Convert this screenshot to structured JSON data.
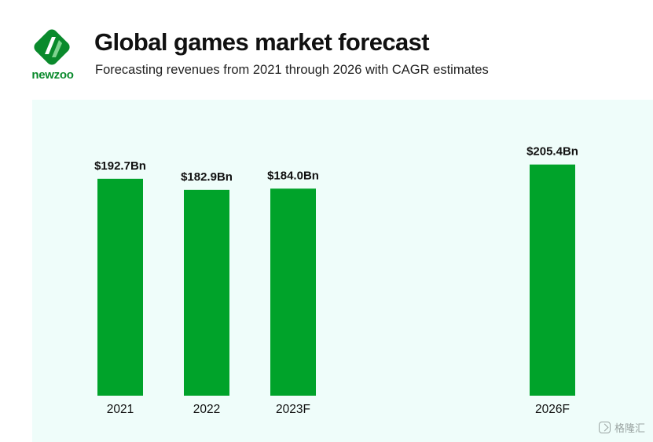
{
  "brand": {
    "name": "newzoo",
    "icon": "newzoo-logo-icon",
    "color": "#0a8a2c"
  },
  "header": {
    "title": "Global games market forecast",
    "subtitle": "Forecasting revenues from 2021 through 2026 with CAGR estimates"
  },
  "colors": {
    "bar": "#00a32a",
    "panel": "#effdfa",
    "text": "#111111"
  },
  "chart_data": {
    "type": "bar",
    "title": "Global games market forecast",
    "subtitle": "Forecasting revenues from 2021 through 2026 with CAGR estimates",
    "xlabel": "",
    "ylabel": "",
    "ylim": [
      0,
      210
    ],
    "grid": false,
    "units": "USD billions",
    "categories": [
      "2021",
      "2022",
      "2023F",
      "2026F"
    ],
    "values": [
      192.7,
      182.9,
      184.0,
      205.4
    ],
    "data_labels": [
      "$192.7Bn",
      "$182.9Bn",
      "$184.0Bn",
      "$205.4Bn"
    ]
  },
  "watermark": {
    "icon": "gelonghui-icon",
    "text": "格隆汇"
  }
}
